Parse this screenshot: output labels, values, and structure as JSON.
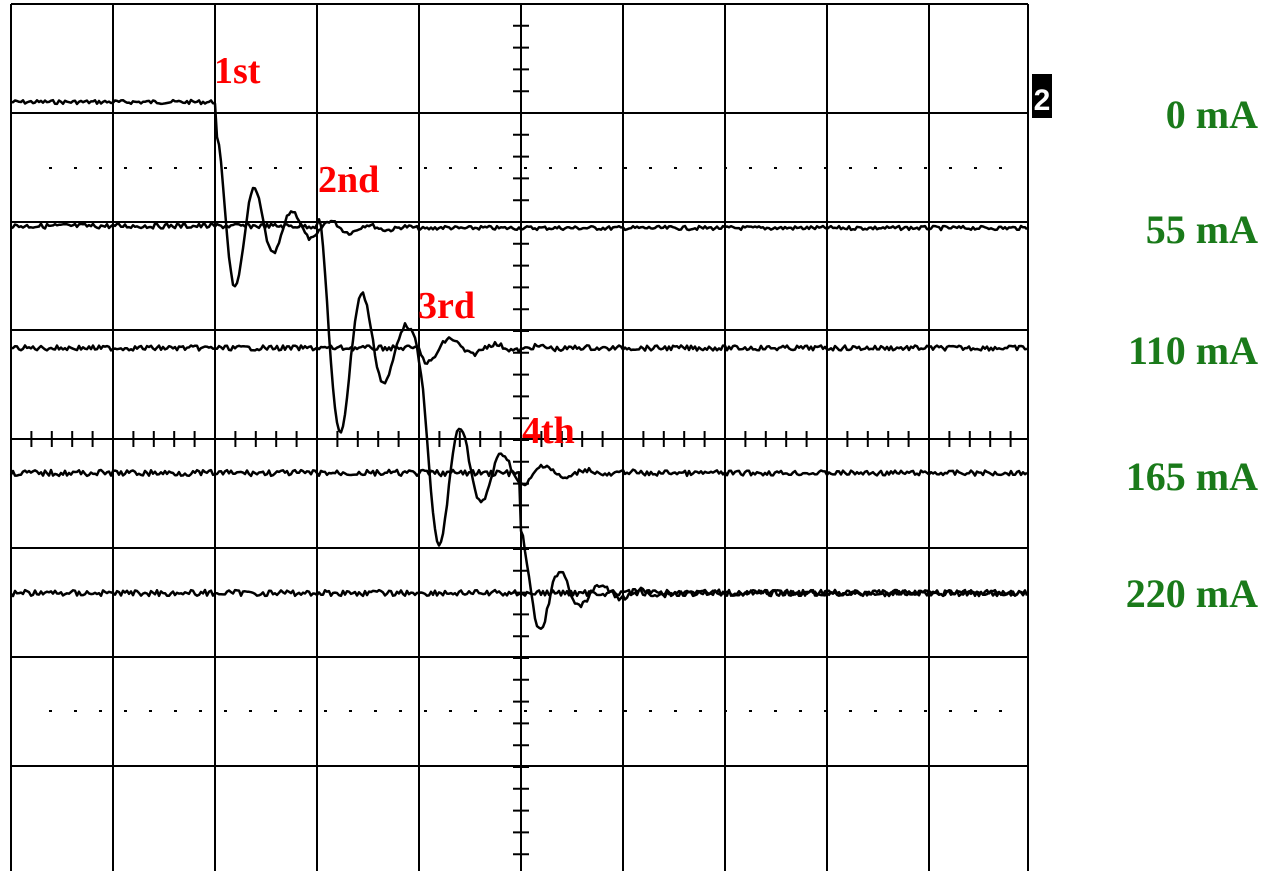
{
  "chart_data": {
    "type": "line",
    "title": "",
    "xlabel": "",
    "ylabel": "",
    "grid": true,
    "annotations": [
      "1st",
      "2nd",
      "3rd",
      "4th"
    ],
    "series": [
      {
        "name": "0 mA"
      },
      {
        "name": "55 mA"
      },
      {
        "name": "110 mA"
      },
      {
        "name": "165 mA"
      },
      {
        "name": "220 mA"
      }
    ],
    "channel_marker": "2"
  },
  "colors": {
    "annotation": "#ff0000",
    "current_label": "#1a7a1a",
    "trace": "#000000",
    "background": "#ffffff"
  }
}
